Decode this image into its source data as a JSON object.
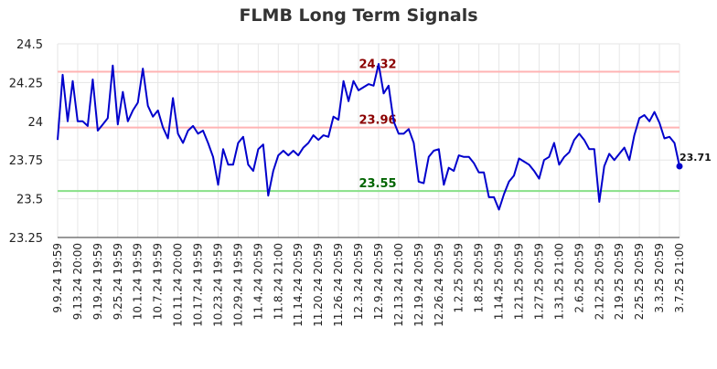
{
  "chart_data": {
    "type": "line",
    "title": "FLMB Long Term Signals",
    "ylim": [
      23.25,
      24.5
    ],
    "yticks": [
      "24.5",
      "24.25",
      "24",
      "23.75",
      "23.5",
      "23.25"
    ],
    "ytick_values": [
      24.5,
      24.25,
      24.0,
      23.75,
      23.5,
      23.25
    ],
    "xtick_labels": [
      "9.9.24 19:59",
      "9.13.24 20:00",
      "9.19.24 19:59",
      "9.25.24 19:59",
      "10.1.24 19:59",
      "10.7.24 19:59",
      "10.11.24 20:00",
      "10.17.24 19:59",
      "10.23.24 19:59",
      "10.29.24 19:59",
      "11.4.24 20:59",
      "11.8.24 21:00",
      "11.14.24 20:59",
      "11.20.24 20:59",
      "11.26.24 20:59",
      "12.3.24 20:59",
      "12.9.24 20:59",
      "12.13.24 21:00",
      "12.19.24 20:59",
      "12.26.24 20:59",
      "1.2.25 20:59",
      "1.8.25 20:59",
      "1.14.25 20:59",
      "1.21.25 20:59",
      "1.27.25 20:59",
      "1.31.25 21:00",
      "2.6.25 20:59",
      "2.12.25 20:59",
      "2.19.25 20:59",
      "2.25.25 20:59",
      "3.3.25 20:59",
      "3.7.25 21:00"
    ],
    "grid": true,
    "series": [
      {
        "color": "#0000cc",
        "values": [
          23.88,
          24.3,
          24.0,
          24.26,
          24.0,
          24.0,
          23.97,
          24.27,
          23.94,
          23.98,
          24.02,
          24.36,
          23.98,
          24.19,
          24.0,
          24.07,
          24.12,
          24.34,
          24.1,
          24.03,
          24.07,
          23.96,
          23.89,
          24.15,
          23.92,
          23.86,
          23.94,
          23.97,
          23.92,
          23.94,
          23.86,
          23.77,
          23.59,
          23.82,
          23.72,
          23.72,
          23.86,
          23.9,
          23.72,
          23.68,
          23.82,
          23.85,
          23.52,
          23.68,
          23.78,
          23.81,
          23.78,
          23.81,
          23.78,
          23.83,
          23.86,
          23.91,
          23.88,
          23.91,
          23.9,
          24.03,
          24.01,
          24.26,
          24.13,
          24.26,
          24.2,
          24.22,
          24.24,
          24.23,
          24.37,
          24.18,
          24.23,
          24.0,
          23.92,
          23.92,
          23.95,
          23.86,
          23.61,
          23.6,
          23.77,
          23.81,
          23.82,
          23.59,
          23.7,
          23.68,
          23.78,
          23.77,
          23.77,
          23.73,
          23.67,
          23.67,
          23.51,
          23.51,
          23.43,
          23.53,
          23.61,
          23.65,
          23.76,
          23.74,
          23.72,
          23.68,
          23.63,
          23.75,
          23.77,
          23.86,
          23.72,
          23.77,
          23.8,
          23.88,
          23.92,
          23.88,
          23.82,
          23.82,
          23.48,
          23.71,
          23.79,
          23.75,
          23.79,
          23.83,
          23.75,
          23.91,
          24.02,
          24.04,
          24.0,
          24.06,
          23.99,
          23.89,
          23.9,
          23.86,
          23.71
        ]
      }
    ],
    "last_value_label": "23.71",
    "lines": [
      {
        "value": 24.32,
        "label": "24.32",
        "line_color": "#ffb3b3",
        "label_color": "#8b0000"
      },
      {
        "value": 23.96,
        "label": "23.96",
        "line_color": "#ffb3b3",
        "label_color": "#8b0000"
      },
      {
        "value": 23.55,
        "label": "23.55",
        "line_color": "#88e088",
        "label_color": "#006400"
      }
    ]
  }
}
